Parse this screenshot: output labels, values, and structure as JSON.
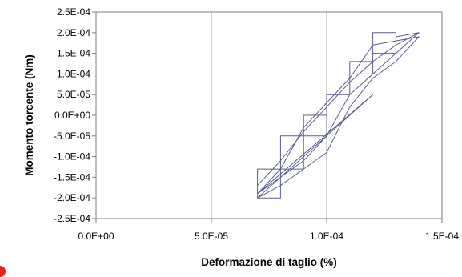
{
  "chart_data": {
    "type": "line",
    "title": "",
    "xlabel": "Deformazione di taglio (%)",
    "ylabel": "Momento torcente (Nm)",
    "xlim": [
      0,
      0.00015
    ],
    "ylim": [
      -0.00025,
      0.00025
    ],
    "x_ticks": [
      0,
      5e-05,
      0.0001,
      0.00015
    ],
    "x_tick_labels": [
      "0.0E+00",
      "5.0E-05",
      "1.0E-04",
      "1.5E-04"
    ],
    "y_ticks": [
      0.00025,
      0.0002,
      0.00015,
      0.0001,
      5e-05,
      0,
      -5e-05,
      -0.0001,
      -0.00015,
      -0.0002,
      -0.00025
    ],
    "y_tick_labels": [
      "2.5E-04",
      "2.0E-04",
      "1.5E-04",
      "1.0E-04",
      "5.0E-05",
      "0.0E+00",
      "-5.0E-05",
      "-1.0E-04",
      "-1.5E-04",
      "-2.0E-04",
      "-2.5E-04"
    ],
    "grid": {
      "vertical": true,
      "horizontal": false
    },
    "legend": "none",
    "series": [
      {
        "x": [
          7e-05,
          8e-05,
          8e-05,
          9e-05,
          9e-05,
          0.0001,
          0.0001,
          0.00011,
          0.00011,
          0.00012,
          0.00012,
          0.00013,
          0.00013,
          0.00014,
          0.00013,
          0.00013,
          0.00012,
          0.00012,
          0.00011,
          0.00011,
          0.0001,
          0.0001,
          9e-05,
          9e-05,
          8e-05,
          8e-05,
          7e-05,
          7e-05,
          8e-05,
          9e-05,
          0.0001,
          0.00011,
          0.00012,
          0.00013,
          0.00014,
          0.00013,
          0.00012,
          0.00011,
          0.0001,
          9e-05,
          8e-05,
          7e-05,
          7e-05,
          8e-05,
          9e-05,
          0.0001,
          0.00011,
          0.00012,
          0.00013,
          0.00014,
          0.00013,
          0.00012,
          0.00011,
          0.0001,
          9e-05,
          8e-05,
          7e-05,
          0.00012,
          0.0001,
          8e-05,
          7e-05
        ],
        "y": [
          -0.0002,
          -0.0002,
          -0.00013,
          -0.00013,
          -5e-05,
          -5e-05,
          5e-05,
          5e-05,
          0.00013,
          0.00013,
          0.0002,
          0.0002,
          0.00019,
          0.0002,
          0.00019,
          0.00015,
          0.00015,
          0.0001,
          0.0001,
          5e-05,
          5e-05,
          0,
          0,
          -5e-05,
          -5e-05,
          -0.00013,
          -0.00013,
          -0.00019,
          -0.00015,
          -0.00011,
          -5e-05,
          5e-05,
          0.0001,
          0.00015,
          0.0002,
          0.00017,
          0.00013,
          8e-05,
          2e-05,
          -4e-05,
          -0.00011,
          -0.00017,
          -0.0002,
          -0.00017,
          -0.00013,
          -9e-05,
          2e-05,
          9e-05,
          0.00013,
          0.00019,
          0.00018,
          0.00017,
          9e-05,
          3e-05,
          -3e-05,
          -0.00013,
          -0.00019,
          5e-05,
          -5e-05,
          -0.00015,
          -0.0002
        ]
      }
    ]
  },
  "colors": {
    "series_line": "#5c5c92",
    "gridline": "#a6a6a6",
    "frame": "#7f7f7f",
    "corner_mark": "#e2231a"
  }
}
